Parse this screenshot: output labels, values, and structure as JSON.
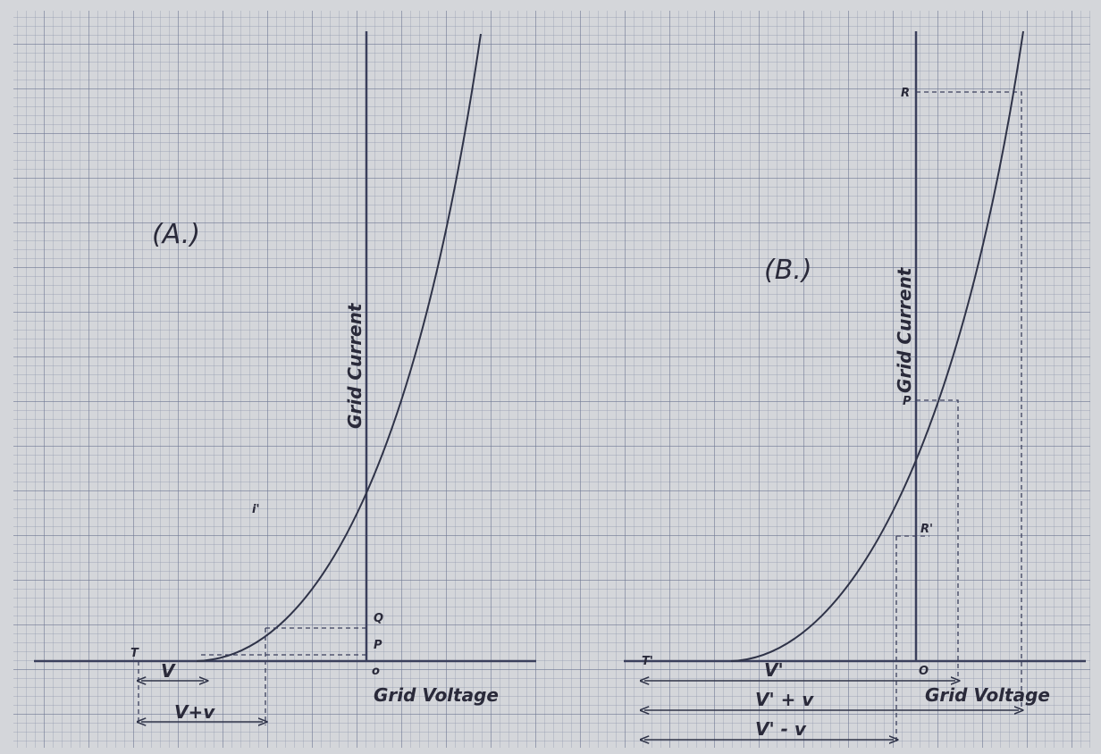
{
  "panel_a": {
    "title": "(A.)",
    "y_axis_label": "Grid Current",
    "x_axis_label": "Grid Voltage",
    "origin": "o",
    "point_t": "T",
    "point_p": "P",
    "point_q": "Q",
    "curve_label": "i'",
    "span_v": "V",
    "span_v_plus": "V+v"
  },
  "panel_b": {
    "title": "(B.)",
    "y_axis_label": "Grid Current",
    "x_axis_label": "Grid Voltage",
    "origin": "O",
    "point_t": "T'",
    "point_p": "P",
    "point_r": "R",
    "point_r_prime": "R'",
    "span_v": "V'",
    "span_v_plus": "V' + v",
    "span_v_minus": "V' - v"
  }
}
